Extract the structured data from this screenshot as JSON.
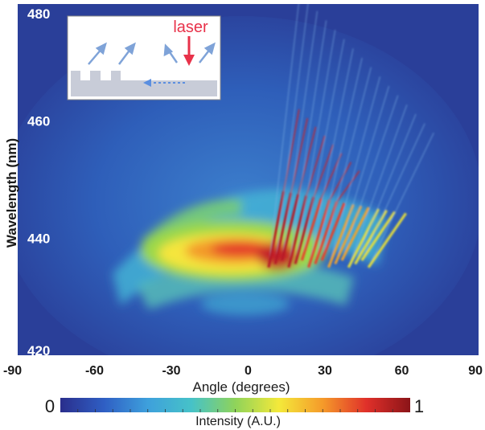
{
  "chart_data": {
    "type": "heatmap",
    "title": "",
    "xlabel": "Angle (degrees)",
    "ylabel": "Wavelength (nm)",
    "xlim": [
      -90,
      90
    ],
    "ylim": [
      420,
      480
    ],
    "x_ticks": [
      "-90",
      "-60",
      "-30",
      "0",
      "30",
      "60",
      "90"
    ],
    "x_tick_values": [
      -90,
      -60,
      -30,
      0,
      30,
      60,
      90
    ],
    "y_ticks": [
      "420",
      "440",
      "460",
      "480"
    ],
    "y_tick_values": [
      420,
      440,
      460,
      480
    ],
    "colorbar": {
      "label": "Intensity (A.U.)",
      "min_label": "0",
      "max_label": "1",
      "min": 0,
      "max": 1,
      "colors": [
        "#2a2e8c",
        "#2f5fc4",
        "#3ea0dc",
        "#46c2c8",
        "#8fd35a",
        "#f4e93a",
        "#f59a2a",
        "#e0302a",
        "#8b1418"
      ]
    },
    "background_intensity": 0.12,
    "features": [
      {
        "name": "main emission band",
        "angle_range": [
          -25,
          25
        ],
        "center_wavelength": 439,
        "peak_intensity": 0.9
      },
      {
        "name": "upper side lobe",
        "angle_range": [
          -50,
          -20
        ],
        "center_wavelength": 442.5,
        "peak_intensity": 0.5
      },
      {
        "name": "lower lobe",
        "angle_range": [
          -40,
          40
        ],
        "center_wavelength": 433,
        "peak_intensity": 0.45
      },
      {
        "name": "lasing fringes",
        "angle_range": [
          8,
          55
        ],
        "wavelength_range": [
          434,
          476
        ],
        "peak_intensity": 1.0
      }
    ],
    "grid": false,
    "legend": "none"
  },
  "inset": {
    "label": "laser",
    "laser_color": "#e8324a",
    "arrow_color": "#7fa3d8",
    "substrate_color": "#c8ccd8"
  }
}
